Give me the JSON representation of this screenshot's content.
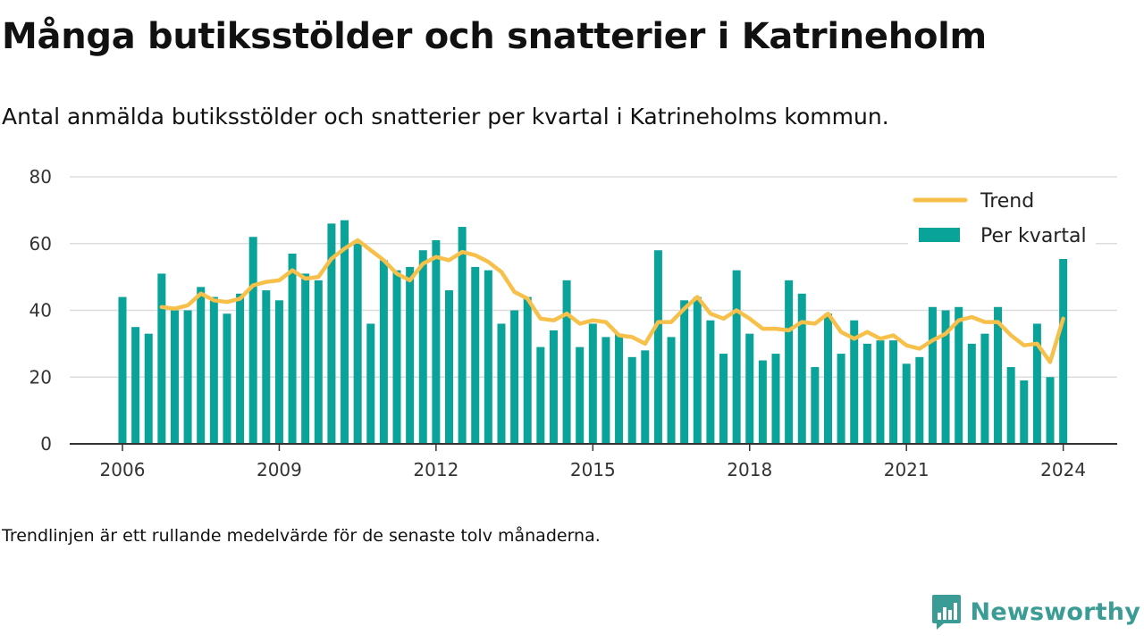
{
  "header": {
    "title": "Många butiksstölder och snatterier i Katrineholm",
    "subtitle": "Antal anmälda butiksstölder och snatterier per kvartal i Katrineholms kommun."
  },
  "footer": {
    "note": "Trendlinjen är ett rullande medelvärde för de senaste tolv månaderna.",
    "brand": "Newsworthy"
  },
  "colors": {
    "bar": "#0aa39a",
    "bar_last_highlight": "#c9ebe7",
    "trend": "#f7c04a",
    "grid": "#dddddd",
    "axis": "#333333",
    "brand": "#3a9c95"
  },
  "chart_data": {
    "type": "bar",
    "title": "",
    "xlabel": "",
    "ylabel": "",
    "ylim": [
      0,
      80
    ],
    "yticks": [
      0,
      20,
      40,
      60,
      80
    ],
    "xticks": [
      "2006",
      "2009",
      "2012",
      "2015",
      "2018",
      "2021",
      "2024"
    ],
    "grid": true,
    "legend": {
      "position": "top-right",
      "entries": [
        "Trend",
        "Per kvartal"
      ]
    },
    "categories": [
      "2006 Q1",
      "2006 Q2",
      "2006 Q3",
      "2006 Q4",
      "2007 Q1",
      "2007 Q2",
      "2007 Q3",
      "2007 Q4",
      "2008 Q1",
      "2008 Q2",
      "2008 Q3",
      "2008 Q4",
      "2009 Q1",
      "2009 Q2",
      "2009 Q3",
      "2009 Q4",
      "2010 Q1",
      "2010 Q2",
      "2010 Q3",
      "2010 Q4",
      "2011 Q1",
      "2011 Q2",
      "2011 Q3",
      "2011 Q4",
      "2012 Q1",
      "2012 Q2",
      "2012 Q3",
      "2012 Q4",
      "2013 Q1",
      "2013 Q2",
      "2013 Q3",
      "2013 Q4",
      "2014 Q1",
      "2014 Q2",
      "2014 Q3",
      "2014 Q4",
      "2015 Q1",
      "2015 Q2",
      "2015 Q3",
      "2015 Q4",
      "2016 Q1",
      "2016 Q2",
      "2016 Q3",
      "2016 Q4",
      "2017 Q1",
      "2017 Q2",
      "2017 Q3",
      "2017 Q4",
      "2018 Q1",
      "2018 Q2",
      "2018 Q3",
      "2018 Q4",
      "2019 Q1",
      "2019 Q2",
      "2019 Q3",
      "2019 Q4",
      "2020 Q1",
      "2020 Q2",
      "2020 Q3",
      "2020 Q4",
      "2021 Q1",
      "2021 Q2",
      "2021 Q3",
      "2021 Q4",
      "2022 Q1",
      "2022 Q2",
      "2022 Q3",
      "2022 Q4",
      "2023 Q1",
      "2023 Q2",
      "2023 Q3",
      "2023 Q4",
      "2024 Q1"
    ],
    "series": [
      {
        "name": "Per kvartal",
        "type": "bar",
        "values": [
          44,
          35,
          33,
          51,
          40,
          40,
          47,
          44,
          39,
          45,
          62,
          46,
          43,
          57,
          51,
          49,
          66,
          67,
          60,
          36,
          55,
          52,
          53,
          58,
          61,
          46,
          65,
          53,
          52,
          36,
          40,
          44,
          29,
          34,
          49,
          29,
          36,
          32,
          33,
          26,
          28,
          58,
          32,
          43,
          44,
          37,
          27,
          52,
          33,
          25,
          27,
          49,
          45,
          23,
          39,
          27,
          37,
          30,
          31,
          31,
          24,
          26,
          41,
          40,
          41,
          30,
          33,
          41,
          23,
          19,
          36,
          20,
          56
        ],
        "last_value_extension": 72
      },
      {
        "name": "Trend",
        "type": "line",
        "values": [
          null,
          null,
          null,
          41,
          40.5,
          41.5,
          45,
          43,
          42.5,
          43.5,
          47.5,
          48.5,
          49,
          52,
          49.5,
          50,
          55.5,
          58.5,
          61,
          58,
          55,
          51,
          49,
          54,
          56,
          55,
          57.5,
          56.5,
          54.5,
          51.5,
          45.5,
          43.5,
          37.5,
          37,
          39,
          36,
          37,
          36.5,
          32.5,
          32,
          30,
          36.5,
          36.5,
          40.5,
          44,
          39,
          37.5,
          40,
          37.5,
          34.5,
          34.5,
          34,
          36.5,
          36,
          39,
          33.5,
          31.5,
          33.5,
          31.5,
          32.5,
          29.5,
          28.5,
          31,
          33,
          37,
          38,
          36.5,
          36.5,
          32.5,
          29.5,
          30,
          24.5,
          37.5
        ]
      }
    ]
  }
}
